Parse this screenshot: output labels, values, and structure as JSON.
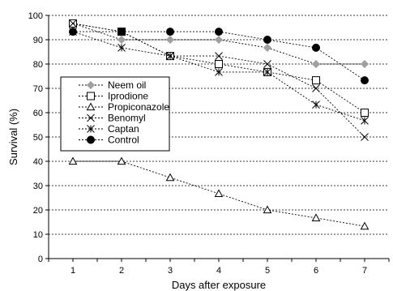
{
  "chart_data": {
    "type": "line",
    "title": "",
    "xlabel": "Days after exposure",
    "ylabel": "Survival (%)",
    "x": [
      1,
      2,
      3,
      4,
      5,
      6,
      7
    ],
    "xlim": [
      0.5,
      7.5
    ],
    "ylim": [
      0,
      100
    ],
    "yticks": [
      0,
      10,
      20,
      30,
      40,
      50,
      60,
      70,
      80,
      90,
      100
    ],
    "xticks": [
      1,
      2,
      3,
      4,
      5,
      6,
      7
    ],
    "grid": "horizontal dashed",
    "legend_position": "upper-left",
    "series": [
      {
        "name": "Neem oil",
        "marker": "diamond",
        "color": "#a0a0a0",
        "values": [
          96.7,
          90,
          90,
          90,
          86.7,
          80,
          80
        ]
      },
      {
        "name": "Iprodione",
        "marker": "square-open",
        "color": "#000000",
        "values": [
          96.7,
          93.3,
          83.3,
          80,
          76.7,
          73.3,
          60
        ]
      },
      {
        "name": "Propiconazole",
        "marker": "triangle-open",
        "color": "#000000",
        "values": [
          40,
          40,
          33.3,
          26.7,
          20,
          16.7,
          13.3
        ]
      },
      {
        "name": "Benomyl",
        "marker": "x",
        "color": "#000000",
        "values": [
          96.7,
          93.3,
          83.3,
          83.3,
          80,
          70,
          50
        ]
      },
      {
        "name": "Captan",
        "marker": "star",
        "color": "#000000",
        "values": [
          93.3,
          86.7,
          83.3,
          76.7,
          76.7,
          63.3,
          56.7
        ]
      },
      {
        "name": "Control",
        "marker": "circle-filled",
        "color": "#000000",
        "values": [
          93.3,
          93.3,
          93.3,
          93.3,
          90,
          86.7,
          73.3
        ]
      }
    ]
  }
}
